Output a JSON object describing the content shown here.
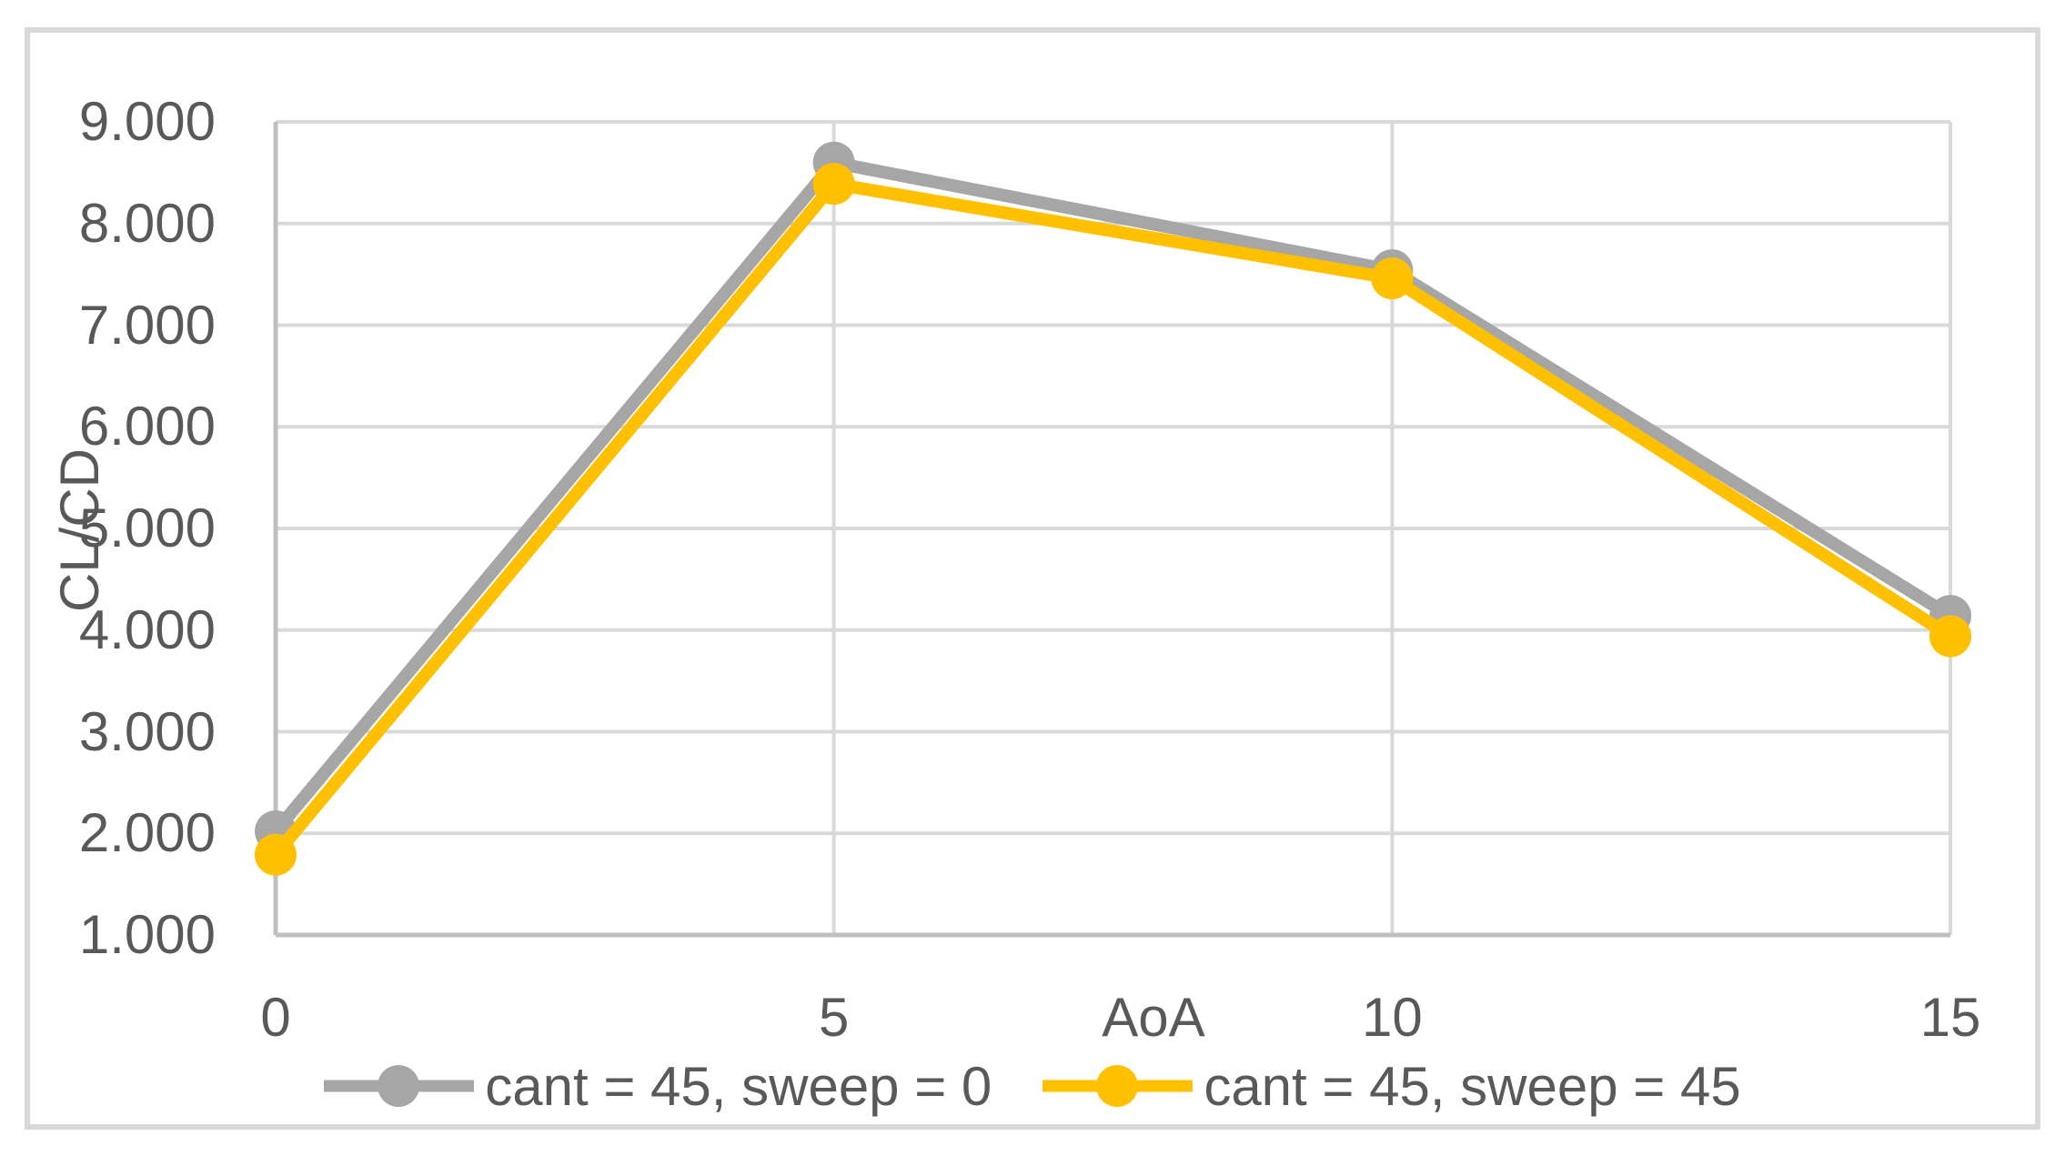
{
  "colors": {
    "background": "#FFFFFF",
    "chart_border": "#D9D9D9",
    "gridline": "#D9D9D9",
    "axis_line": "#BFBFBF",
    "text": "#595959",
    "series_gray": "#A6A6A6",
    "series_gold": "#FFC000"
  },
  "chart_data": {
    "type": "line",
    "title": "",
    "xlabel": "AoA",
    "ylabel": "CL/CD",
    "x": [
      0,
      5,
      10,
      15
    ],
    "series": [
      {
        "name": "cant = 45, sweep = 0",
        "color": "#A6A6A6",
        "marker": "circle",
        "values": [
          2.02,
          8.6,
          7.54,
          4.14
        ]
      },
      {
        "name": "cant = 45, sweep = 45",
        "color": "#FFC000",
        "marker": "circle",
        "values": [
          1.79,
          8.39,
          7.46,
          3.94
        ]
      }
    ],
    "xlim": [
      0,
      15
    ],
    "ylim": [
      1,
      9
    ],
    "x_ticks": {
      "values": [
        0,
        5,
        10,
        15
      ],
      "labels": [
        "0",
        "5",
        "10",
        "15"
      ]
    },
    "y_ticks": {
      "values": [
        1,
        2,
        3,
        4,
        5,
        6,
        7,
        8,
        9
      ],
      "labels": [
        "1.000",
        "2.000",
        "3.000",
        "4.000",
        "5.000",
        "6.000",
        "7.000",
        "8.000",
        "9.000"
      ]
    },
    "grid": true,
    "legend_position": "bottom"
  }
}
